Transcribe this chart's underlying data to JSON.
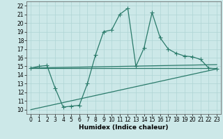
{
  "xlabel": "Humidex (Indice chaleur)",
  "xlim": [
    -0.5,
    23.5
  ],
  "ylim": [
    9.5,
    22.5
  ],
  "xticks": [
    0,
    1,
    2,
    3,
    4,
    5,
    6,
    7,
    8,
    9,
    10,
    11,
    12,
    13,
    14,
    15,
    16,
    17,
    18,
    19,
    20,
    21,
    22,
    23
  ],
  "yticks": [
    10,
    11,
    12,
    13,
    14,
    15,
    16,
    17,
    18,
    19,
    20,
    21,
    22
  ],
  "bg_color": "#cce8e8",
  "line_color": "#2a7a6a",
  "lines": [
    {
      "x": [
        0,
        1,
        2,
        3,
        4,
        5,
        6,
        7,
        8,
        9,
        10,
        11,
        12,
        13,
        14,
        15,
        16,
        17,
        18,
        19,
        20,
        21,
        22,
        23
      ],
      "y": [
        14.8,
        15.0,
        15.1,
        12.5,
        10.3,
        10.4,
        10.5,
        13.0,
        16.3,
        19.0,
        19.2,
        21.0,
        21.7,
        15.0,
        17.1,
        21.2,
        18.3,
        17.0,
        16.5,
        16.2,
        16.1,
        15.8,
        14.8,
        14.7
      ],
      "has_markers": true
    },
    {
      "x": [
        0,
        23
      ],
      "y": [
        14.8,
        14.8
      ],
      "has_markers": false
    },
    {
      "x": [
        0,
        23
      ],
      "y": [
        14.8,
        15.2
      ],
      "has_markers": false
    },
    {
      "x": [
        0,
        23
      ],
      "y": [
        10.0,
        14.7
      ],
      "has_markers": false
    }
  ],
  "grid_color": "#afd4d4",
  "marker": "+",
  "markersize": 4,
  "linewidth": 0.9,
  "xlabel_fontsize": 6.5,
  "tick_fontsize": 5.5
}
